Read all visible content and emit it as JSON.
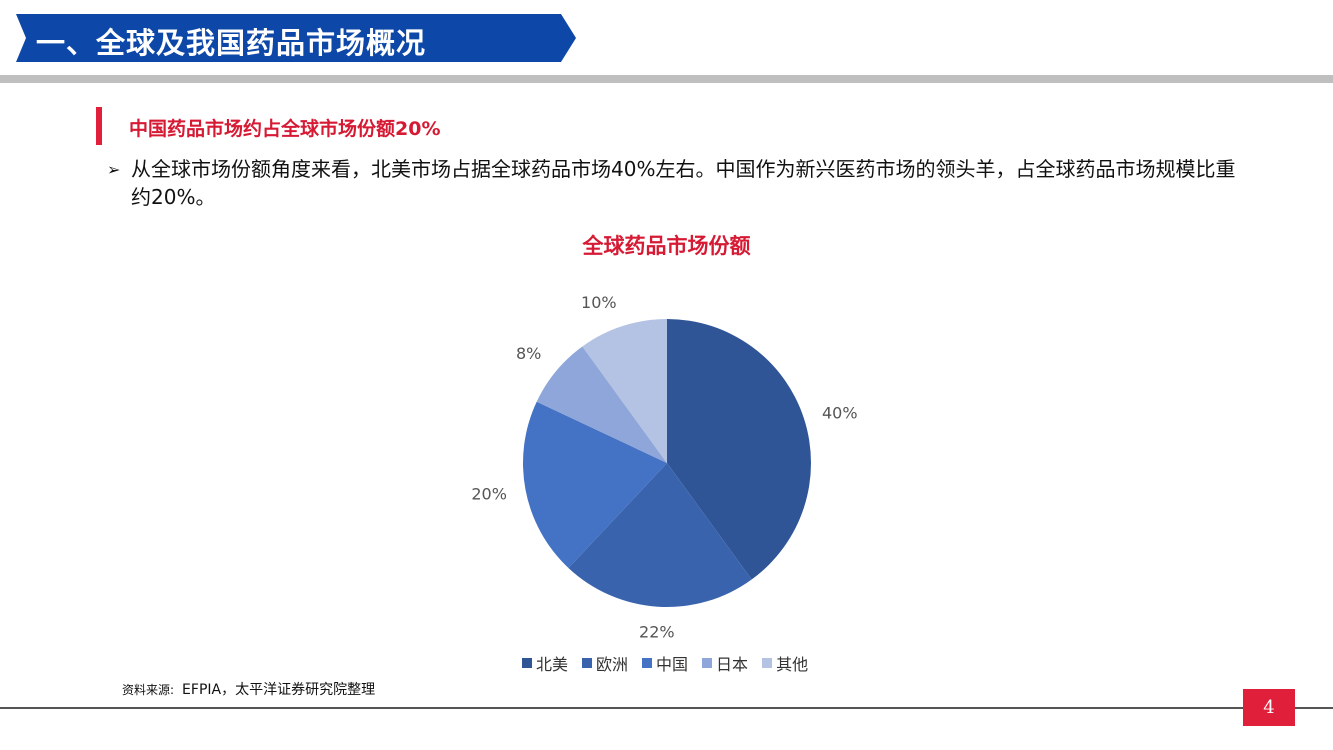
{
  "header": {
    "title": "一、全球及我国药品市场概况"
  },
  "section": {
    "subheading": "中国药品市场约占全球市场份额20%",
    "bullet_marker": "➢",
    "bullet_text": "从全球市场份额角度来看，北美市场占据全球药品市场40%左右。中国作为新兴医药市场的领头羊，占全球药品市场规模比重约20%。"
  },
  "chart_data": {
    "type": "pie",
    "title": "全球药品市场份额",
    "categories": [
      "北美",
      "欧洲",
      "中国",
      "日本",
      "其他"
    ],
    "values": [
      40,
      22,
      20,
      8,
      10
    ],
    "labels": [
      "40%",
      "22%",
      "20%",
      "8%",
      "10%"
    ],
    "colors": [
      "#2f5597",
      "#3a63ae",
      "#4472c4",
      "#8ea6d9",
      "#b4c2e3"
    ],
    "legend_position": "bottom"
  },
  "source": {
    "label": "资料来源:",
    "text": "EFPIA，太平洋证券研究院整理"
  },
  "page": {
    "number": "4"
  },
  "colors": {
    "banner": "#0d47a8",
    "accent": "#e0203a"
  }
}
